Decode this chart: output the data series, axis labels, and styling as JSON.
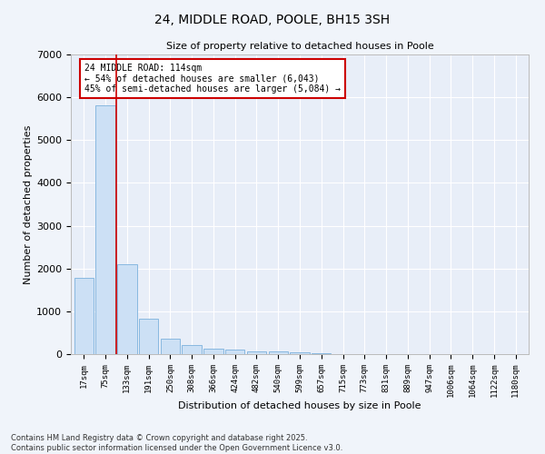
{
  "title_line1": "24, MIDDLE ROAD, POOLE, BH15 3SH",
  "title_line2": "Size of property relative to detached houses in Poole",
  "xlabel": "Distribution of detached houses by size in Poole",
  "ylabel": "Number of detached properties",
  "bar_color": "#cce0f5",
  "bar_edge_color": "#88b8e0",
  "background_color": "#e8eef8",
  "grid_color": "#ffffff",
  "fig_background": "#f0f4fa",
  "categories": [
    "17sqm",
    "75sqm",
    "133sqm",
    "191sqm",
    "250sqm",
    "308sqm",
    "366sqm",
    "424sqm",
    "482sqm",
    "540sqm",
    "599sqm",
    "657sqm",
    "715sqm",
    "773sqm",
    "831sqm",
    "889sqm",
    "947sqm",
    "1006sqm",
    "1064sqm",
    "1122sqm",
    "1180sqm"
  ],
  "values": [
    1780,
    5820,
    2090,
    820,
    360,
    210,
    130,
    100,
    70,
    55,
    40,
    25,
    5,
    3,
    2,
    1,
    1,
    0,
    0,
    0,
    0
  ],
  "ylim": [
    0,
    7000
  ],
  "yticks": [
    0,
    1000,
    2000,
    3000,
    4000,
    5000,
    6000,
    7000
  ],
  "vline_x": 1.5,
  "annotation_text": "24 MIDDLE ROAD: 114sqm\n← 54% of detached houses are smaller (6,043)\n45% of semi-detached houses are larger (5,084) →",
  "annotation_box_color": "#ffffff",
  "annotation_border_color": "#cc0000",
  "vline_color": "#cc0000",
  "footnote": "Contains HM Land Registry data © Crown copyright and database right 2025.\nContains public sector information licensed under the Open Government Licence v3.0."
}
